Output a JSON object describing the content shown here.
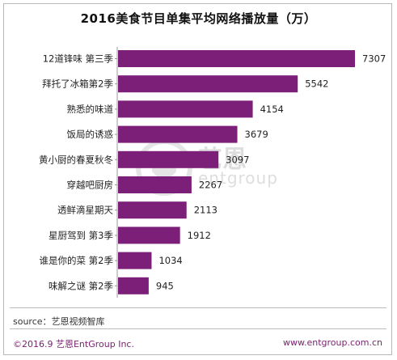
{
  "colors": {
    "bar": "#7b1f79",
    "text": "#222222",
    "footer": "#7a1f6f"
  },
  "watermark": {
    "logo_cn": "艺恩",
    "logo_en": "entgroup"
  },
  "footer": {
    "source": "source：艺恩视频智库",
    "copyright": "©2016.9  艺恩EntGroup Inc.",
    "website": "www.entgroup.com.cn"
  },
  "chart_data": {
    "type": "bar",
    "orientation": "horizontal",
    "title": "2016美食节目单集平均网络播放量（万）",
    "categories": [
      "12道锋味 第三季",
      "拜托了冰箱第2季",
      "熟悉的味道",
      "饭局的诱惑",
      "黄小厨的春夏秋冬",
      "穿越吧厨房",
      "透鲜滴星期天",
      "星厨驾到 第3季",
      "谁是你的菜 第2季",
      "味解之谜 第2季"
    ],
    "values": [
      7307,
      5542,
      4154,
      3679,
      3097,
      2267,
      2113,
      1912,
      1034,
      945
    ],
    "xlim": [
      0,
      7307
    ]
  }
}
